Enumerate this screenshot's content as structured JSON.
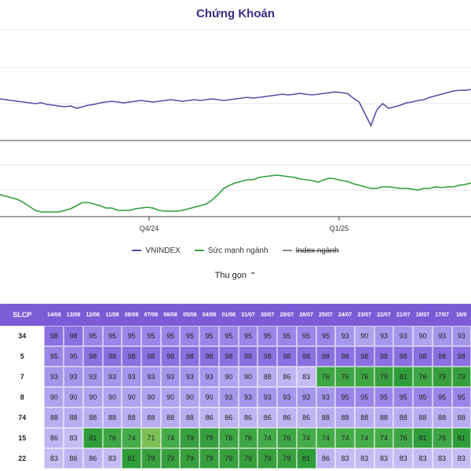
{
  "header": {
    "title": "Chứng Khoán"
  },
  "chart_data": {
    "type": "line",
    "x_ticks": [
      "Q4/24",
      "Q1/25"
    ],
    "series": [
      {
        "name": "VNINDEX",
        "color": "#5b4aa8",
        "values": [
          126,
          127,
          128,
          129,
          130,
          131,
          132,
          131,
          133,
          134,
          135,
          136,
          135,
          138,
          136,
          134,
          133,
          131,
          130,
          129,
          130,
          131,
          130,
          129,
          128,
          129,
          130,
          129,
          128,
          127,
          128,
          129,
          128,
          127,
          128,
          127,
          126,
          127,
          128,
          127,
          126,
          125,
          124,
          125,
          124,
          123,
          122,
          121,
          120,
          121,
          120,
          119,
          120,
          121,
          120,
          119,
          118,
          117,
          118,
          119,
          125,
          130,
          145,
          160,
          140,
          132,
          138,
          136,
          134,
          131,
          130,
          128,
          127,
          124,
          122,
          120,
          118,
          116,
          115,
          115,
          114
        ]
      },
      {
        "name": "Sức mạnh ngành",
        "color": "#2f9e3a",
        "values": [
          248,
          250,
          252,
          254,
          258,
          263,
          268,
          270,
          270,
          270,
          270,
          268,
          266,
          262,
          258,
          258,
          260,
          262,
          265,
          265,
          268,
          268,
          268,
          266,
          265,
          264,
          265,
          268,
          269,
          269,
          269,
          268,
          266,
          264,
          262,
          260,
          255,
          248,
          240,
          236,
          233,
          231,
          229,
          229,
          226,
          225,
          224,
          223,
          224,
          225,
          226,
          228,
          229,
          230,
          232,
          229,
          227,
          228,
          230,
          231,
          234,
          236,
          238,
          240,
          240,
          238,
          238,
          239,
          240,
          240,
          241,
          242,
          240,
          240,
          238,
          239,
          238,
          238,
          236,
          235,
          233
        ]
      },
      {
        "name": "Index ngành",
        "color": "#888888",
        "hidden": true
      }
    ]
  },
  "legend": [
    {
      "label": "VNINDEX",
      "color": "#5b4aa8"
    },
    {
      "label": "Sức mạnh ngành",
      "color": "#2f9e3a"
    },
    {
      "label": "Index ngành",
      "color": "#888888",
      "struck": true
    }
  ],
  "collapse_label": "Thu gọn",
  "table": {
    "first_header": "SLCP",
    "dates": [
      "14/08",
      "13/08",
      "12/08",
      "11/08",
      "08/08",
      "07/08",
      "06/08",
      "05/08",
      "04/08",
      "01/08",
      "31/07",
      "30/07",
      "29/07",
      "28/07",
      "25/07",
      "24/07",
      "23/07",
      "22/07",
      "21/07",
      "18/07",
      "17/07",
      "16/0"
    ],
    "rows": [
      {
        "slcp": "34",
        "values": [
          98,
          98,
          95,
          95,
          95,
          95,
          95,
          95,
          95,
          95,
          95,
          95,
          95,
          95,
          95,
          93,
          90,
          93,
          93,
          90,
          93,
          93
        ]
      },
      {
        "slcp": "5",
        "values": [
          95,
          95,
          98,
          98,
          98,
          98,
          98,
          98,
          98,
          98,
          98,
          98,
          98,
          98,
          98,
          98,
          98,
          98,
          98,
          98,
          98,
          98
        ]
      },
      {
        "slcp": "7",
        "values": [
          93,
          93,
          93,
          93,
          93,
          93,
          93,
          93,
          93,
          90,
          90,
          88,
          86,
          83,
          76,
          76,
          76,
          79,
          81,
          76,
          79,
          79
        ]
      },
      {
        "slcp": "8",
        "values": [
          90,
          90,
          90,
          90,
          90,
          90,
          90,
          90,
          90,
          93,
          93,
          93,
          93,
          93,
          93,
          95,
          95,
          95,
          95,
          95,
          95,
          95
        ]
      },
      {
        "slcp": "74",
        "values": [
          88,
          88,
          88,
          88,
          88,
          88,
          88,
          88,
          86,
          86,
          86,
          86,
          86,
          86,
          88,
          88,
          88,
          88,
          88,
          88,
          88,
          88
        ]
      },
      {
        "slcp": "15",
        "values": [
          86,
          83,
          81,
          76,
          74,
          71,
          74,
          79,
          79,
          76,
          76,
          74,
          76,
          74,
          74,
          74,
          74,
          74,
          76,
          81,
          76,
          81
        ]
      },
      {
        "slcp": "22",
        "values": [
          83,
          86,
          86,
          83,
          81,
          79,
          79,
          79,
          79,
          79,
          79,
          79,
          79,
          81,
          86,
          83,
          83,
          83,
          83,
          83,
          83,
          83
        ]
      }
    ]
  }
}
